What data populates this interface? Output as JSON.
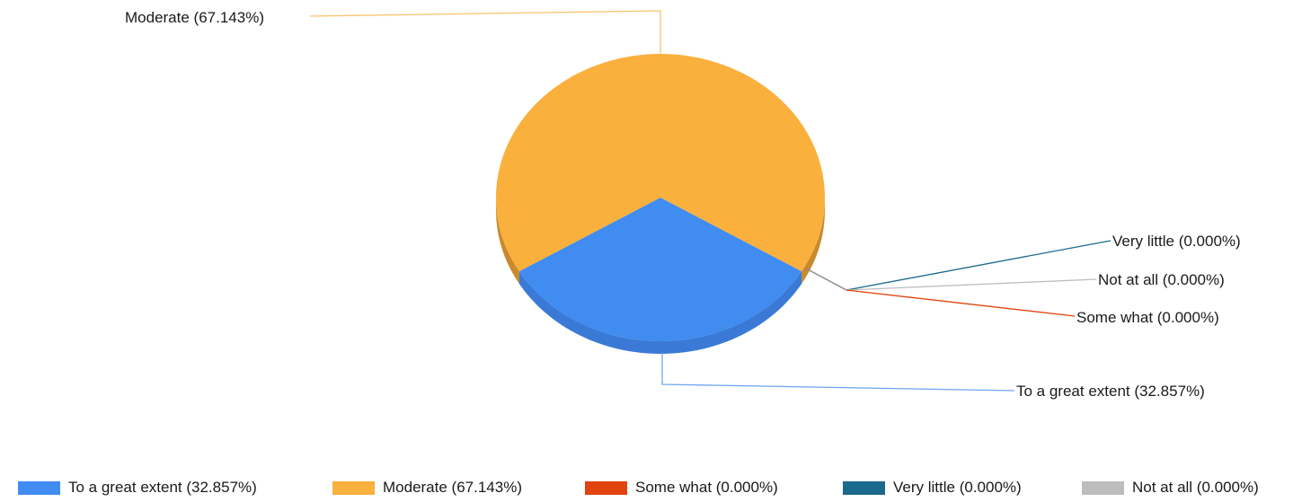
{
  "chart_data": {
    "type": "pie",
    "slices": [
      {
        "label": "To a great extent (32.857%)",
        "value": 32.857,
        "color": "#418cf0"
      },
      {
        "label": "Moderate (67.143%)",
        "value": 67.143,
        "color": "#fab03d"
      },
      {
        "label": "Some what (0.000%)",
        "value": 0.0,
        "color": "#e2430c"
      },
      {
        "label": "Very little (0.000%)",
        "value": 0.0,
        "color": "#1b6a8c"
      },
      {
        "label": "Not at all (0.000%)",
        "value": 0.0,
        "color": "#bdbdbd"
      }
    ],
    "legend_placement": "bottom",
    "style": "3d"
  }
}
